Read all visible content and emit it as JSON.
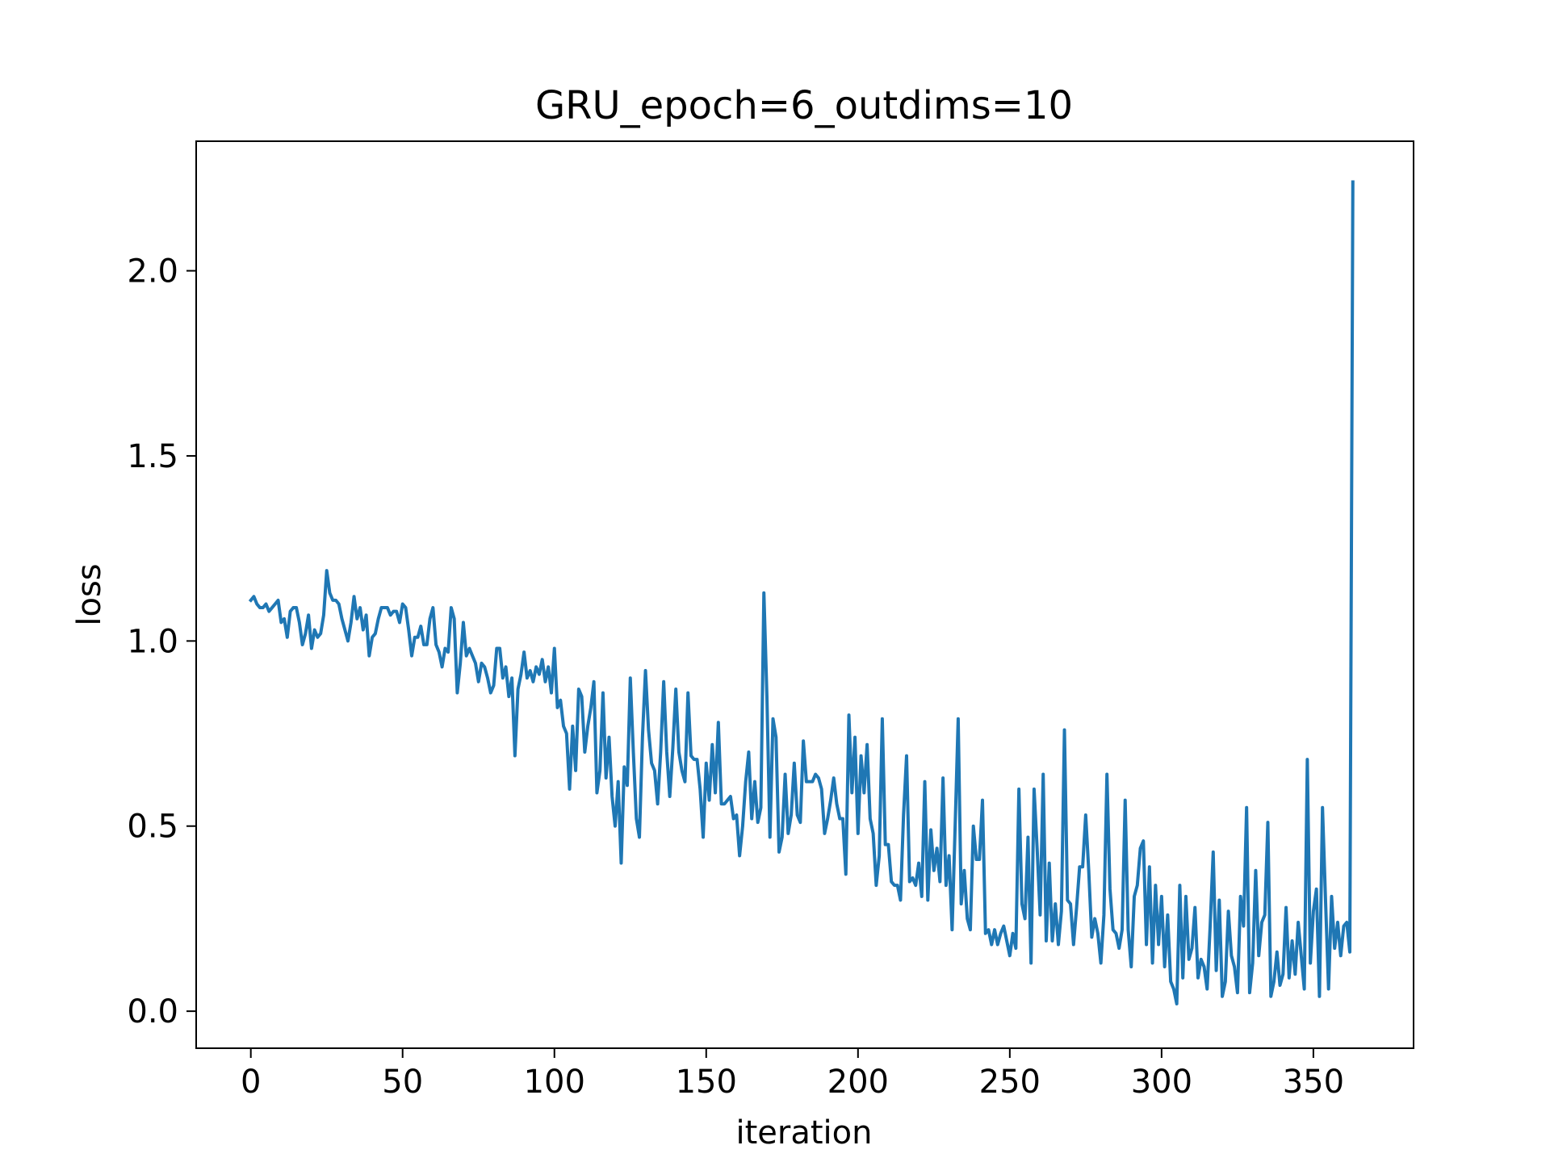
{
  "chart_data": {
    "type": "line",
    "title": "GRU_epoch=6_outdims=10",
    "xlabel": "iteration",
    "ylabel": "loss",
    "xlim": [
      -18,
      383
    ],
    "ylim": [
      -0.1,
      2.35
    ],
    "xticks": [
      0,
      50,
      100,
      150,
      200,
      250,
      300,
      350
    ],
    "xtick_labels": [
      "0",
      "50",
      "100",
      "150",
      "200",
      "250",
      "300",
      "350"
    ],
    "yticks": [
      0.0,
      0.5,
      1.0,
      1.5,
      2.0
    ],
    "ytick_labels": [
      "0.0",
      "0.5",
      "1.0",
      "1.5",
      "2.0"
    ],
    "grid": false,
    "legend": "none",
    "series": [
      {
        "color": "#1f77b4",
        "x_start": 0,
        "x_step": 1,
        "values": [
          1.11,
          1.12,
          1.1,
          1.09,
          1.09,
          1.1,
          1.08,
          1.09,
          1.1,
          1.11,
          1.05,
          1.06,
          1.01,
          1.08,
          1.09,
          1.09,
          1.05,
          0.99,
          1.02,
          1.07,
          0.98,
          1.03,
          1.01,
          1.02,
          1.07,
          1.19,
          1.13,
          1.11,
          1.11,
          1.1,
          1.06,
          1.03,
          1.0,
          1.05,
          1.12,
          1.06,
          1.09,
          1.03,
          1.07,
          0.96,
          1.01,
          1.02,
          1.06,
          1.09,
          1.09,
          1.09,
          1.07,
          1.08,
          1.08,
          1.05,
          1.1,
          1.09,
          1.03,
          0.96,
          1.01,
          1.01,
          1.04,
          0.99,
          0.99,
          1.06,
          1.09,
          0.99,
          0.97,
          0.93,
          0.98,
          0.97,
          1.09,
          1.06,
          0.86,
          0.94,
          1.05,
          0.96,
          0.98,
          0.96,
          0.94,
          0.89,
          0.94,
          0.93,
          0.9,
          0.86,
          0.88,
          0.98,
          0.98,
          0.9,
          0.93,
          0.85,
          0.9,
          0.69,
          0.87,
          0.91,
          0.97,
          0.9,
          0.92,
          0.89,
          0.93,
          0.91,
          0.95,
          0.89,
          0.93,
          0.86,
          0.98,
          0.82,
          0.84,
          0.77,
          0.75,
          0.6,
          0.77,
          0.65,
          0.87,
          0.85,
          0.7,
          0.77,
          0.82,
          0.89,
          0.59,
          0.65,
          0.86,
          0.63,
          0.74,
          0.58,
          0.5,
          0.62,
          0.4,
          0.66,
          0.61,
          0.9,
          0.7,
          0.52,
          0.47,
          0.74,
          0.92,
          0.76,
          0.67,
          0.65,
          0.56,
          0.7,
          0.89,
          0.7,
          0.58,
          0.71,
          0.87,
          0.7,
          0.65,
          0.62,
          0.86,
          0.69,
          0.68,
          0.68,
          0.6,
          0.47,
          0.67,
          0.57,
          0.72,
          0.59,
          0.78,
          0.56,
          0.56,
          0.57,
          0.58,
          0.52,
          0.53,
          0.42,
          0.5,
          0.62,
          0.7,
          0.52,
          0.62,
          0.51,
          0.55,
          1.13,
          0.85,
          0.47,
          0.79,
          0.74,
          0.43,
          0.47,
          0.64,
          0.48,
          0.53,
          0.67,
          0.53,
          0.51,
          0.73,
          0.62,
          0.62,
          0.62,
          0.64,
          0.63,
          0.6,
          0.48,
          0.52,
          0.57,
          0.63,
          0.56,
          0.52,
          0.52,
          0.37,
          0.8,
          0.59,
          0.74,
          0.48,
          0.69,
          0.59,
          0.72,
          0.52,
          0.48,
          0.34,
          0.42,
          0.79,
          0.45,
          0.45,
          0.35,
          0.34,
          0.34,
          0.3,
          0.53,
          0.69,
          0.35,
          0.36,
          0.34,
          0.4,
          0.31,
          0.62,
          0.3,
          0.49,
          0.38,
          0.44,
          0.35,
          0.63,
          0.34,
          0.42,
          0.22,
          0.5,
          0.79,
          0.29,
          0.38,
          0.25,
          0.22,
          0.5,
          0.41,
          0.41,
          0.57,
          0.21,
          0.22,
          0.18,
          0.22,
          0.18,
          0.21,
          0.23,
          0.19,
          0.15,
          0.21,
          0.17,
          0.6,
          0.29,
          0.25,
          0.47,
          0.13,
          0.6,
          0.44,
          0.26,
          0.64,
          0.19,
          0.4,
          0.19,
          0.29,
          0.18,
          0.27,
          0.76,
          0.3,
          0.29,
          0.18,
          0.28,
          0.39,
          0.39,
          0.53,
          0.38,
          0.2,
          0.25,
          0.21,
          0.13,
          0.26,
          0.64,
          0.33,
          0.22,
          0.21,
          0.17,
          0.22,
          0.57,
          0.22,
          0.12,
          0.31,
          0.34,
          0.44,
          0.46,
          0.18,
          0.39,
          0.13,
          0.34,
          0.18,
          0.31,
          0.12,
          0.26,
          0.08,
          0.06,
          0.02,
          0.34,
          0.09,
          0.31,
          0.14,
          0.17,
          0.28,
          0.09,
          0.14,
          0.12,
          0.06,
          0.23,
          0.43,
          0.11,
          0.3,
          0.04,
          0.08,
          0.27,
          0.15,
          0.12,
          0.05,
          0.31,
          0.23,
          0.55,
          0.05,
          0.13,
          0.38,
          0.15,
          0.24,
          0.26,
          0.51,
          0.04,
          0.08,
          0.16,
          0.07,
          0.1,
          0.28,
          0.09,
          0.19,
          0.1,
          0.24,
          0.15,
          0.06,
          0.68,
          0.13,
          0.27,
          0.33,
          0.04,
          0.55,
          0.3,
          0.06,
          0.31,
          0.17,
          0.24,
          0.15,
          0.23,
          0.24,
          0.16,
          2.24
        ]
      }
    ]
  }
}
